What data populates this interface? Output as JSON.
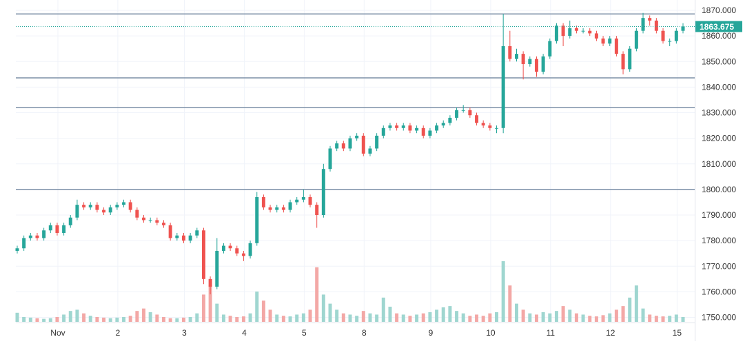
{
  "chart_data": {
    "type": "candlestick",
    "title": "",
    "ylim": [
      1745,
      1872
    ],
    "y_ticks": [
      "1870.000",
      "1860.000",
      "1850.000",
      "1840.000",
      "1830.000",
      "1820.000",
      "1810.000",
      "1800.000",
      "1790.000",
      "1780.000",
      "1770.000",
      "1760.000",
      "1750.000"
    ],
    "x_ticks": [
      {
        "label": "Nov",
        "index": 3
      },
      {
        "label": "2",
        "index": 12
      },
      {
        "label": "3",
        "index": 22
      },
      {
        "label": "4",
        "index": 31
      },
      {
        "label": "5",
        "index": 40
      },
      {
        "label": "8",
        "index": 49
      },
      {
        "label": "9",
        "index": 59
      },
      {
        "label": "10",
        "index": 68
      },
      {
        "label": "11",
        "index": 77
      },
      {
        "label": "12",
        "index": 86
      },
      {
        "label": "15",
        "index": 96
      }
    ],
    "grid": true,
    "last_price": {
      "value": 1863.675,
      "label": "1863.675"
    },
    "horizontal_levels": [
      1868.6,
      1843.6,
      1832,
      1800
    ],
    "colors": {
      "up": "#26a69a",
      "down": "#ef5350",
      "up_volume": "#9fd6d0",
      "down_volume": "#f3a8a6",
      "level": "#7b8fa6",
      "grid": "#f0f3fa",
      "label_bg": "#26a69a"
    },
    "candles_ohlc": [
      [
        1776,
        1778,
        1775,
        1777
      ],
      [
        1777,
        1782,
        1776,
        1781
      ],
      [
        1781,
        1783,
        1780,
        1782
      ],
      [
        1782,
        1783,
        1780,
        1781
      ],
      [
        1781,
        1785,
        1780,
        1784
      ],
      [
        1784,
        1787,
        1783,
        1786
      ],
      [
        1786,
        1787,
        1782,
        1783
      ],
      [
        1783,
        1787,
        1782,
        1786
      ],
      [
        1786,
        1790,
        1785,
        1789
      ],
      [
        1789,
        1796,
        1788,
        1794
      ],
      [
        1794,
        1795,
        1792,
        1793
      ],
      [
        1793,
        1795,
        1792,
        1794
      ],
      [
        1794,
        1795,
        1791,
        1792
      ],
      [
        1792,
        1793,
        1790,
        1791
      ],
      [
        1791,
        1794,
        1790,
        1793
      ],
      [
        1793,
        1795,
        1792,
        1794
      ],
      [
        1794,
        1796,
        1793,
        1795
      ],
      [
        1795,
        1796,
        1791,
        1792
      ],
      [
        1792,
        1793,
        1788,
        1789
      ],
      [
        1789,
        1790,
        1787,
        1788
      ],
      [
        1788,
        1789,
        1787,
        1788
      ],
      [
        1788,
        1789,
        1786,
        1787
      ],
      [
        1787,
        1788,
        1785,
        1786
      ],
      [
        1786,
        1787,
        1780,
        1781
      ],
      [
        1781,
        1783,
        1780,
        1782
      ],
      [
        1782,
        1783,
        1779,
        1780
      ],
      [
        1780,
        1783,
        1779,
        1782
      ],
      [
        1782,
        1785,
        1781,
        1784
      ],
      [
        1784,
        1785,
        1763,
        1765
      ],
      [
        1765,
        1766,
        1759,
        1762
      ],
      [
        1762,
        1781,
        1761,
        1776
      ],
      [
        1776,
        1779,
        1775,
        1778
      ],
      [
        1778,
        1779,
        1776,
        1777
      ],
      [
        1777,
        1778,
        1774,
        1775
      ],
      [
        1775,
        1776,
        1772,
        1774
      ],
      [
        1774,
        1780,
        1773,
        1779
      ],
      [
        1779,
        1799,
        1778,
        1797
      ],
      [
        1797,
        1798,
        1792,
        1793
      ],
      [
        1793,
        1794,
        1791,
        1792
      ],
      [
        1792,
        1794,
        1791,
        1793
      ],
      [
        1793,
        1794,
        1791,
        1792
      ],
      [
        1792,
        1796,
        1791,
        1795
      ],
      [
        1795,
        1797,
        1794,
        1796
      ],
      [
        1796,
        1800,
        1795,
        1797
      ],
      [
        1797,
        1798,
        1793,
        1794
      ],
      [
        1794,
        1795,
        1785,
        1790
      ],
      [
        1790,
        1810,
        1789,
        1808
      ],
      [
        1808,
        1817,
        1807,
        1816
      ],
      [
        1816,
        1819,
        1815,
        1818
      ],
      [
        1818,
        1819,
        1815,
        1816
      ],
      [
        1816,
        1821,
        1815,
        1820
      ],
      [
        1820,
        1822,
        1819,
        1821
      ],
      [
        1821,
        1822,
        1813,
        1814
      ],
      [
        1814,
        1817,
        1813,
        1816
      ],
      [
        1816,
        1822,
        1815,
        1821
      ],
      [
        1821,
        1825,
        1820,
        1824
      ],
      [
        1824,
        1826,
        1823,
        1825
      ],
      [
        1825,
        1826,
        1823,
        1824
      ],
      [
        1824,
        1826,
        1823,
        1825
      ],
      [
        1825,
        1826,
        1822,
        1823
      ],
      [
        1823,
        1825,
        1822,
        1824
      ],
      [
        1824,
        1825,
        1820,
        1821
      ],
      [
        1821,
        1824,
        1820,
        1823
      ],
      [
        1823,
        1826,
        1822,
        1825
      ],
      [
        1825,
        1827,
        1824,
        1826
      ],
      [
        1826,
        1829,
        1825,
        1828
      ],
      [
        1828,
        1832,
        1827,
        1831
      ],
      [
        1831,
        1833,
        1830,
        1831
      ],
      [
        1831,
        1832,
        1828,
        1829
      ],
      [
        1829,
        1830,
        1825,
        1826
      ],
      [
        1826,
        1827,
        1824,
        1825
      ],
      [
        1825,
        1826,
        1823,
        1824
      ],
      [
        1824,
        1825,
        1822,
        1824
      ],
      [
        1824,
        1868.6,
        1822,
        1856
      ],
      [
        1856,
        1862,
        1850,
        1851
      ],
      [
        1851,
        1855,
        1850,
        1853
      ],
      [
        1853,
        1854,
        1843,
        1849
      ],
      [
        1849,
        1852,
        1848,
        1851
      ],
      [
        1851,
        1852,
        1844,
        1846
      ],
      [
        1846,
        1853,
        1845,
        1852
      ],
      [
        1852,
        1859,
        1851,
        1858
      ],
      [
        1858,
        1865,
        1857,
        1864
      ],
      [
        1864,
        1865,
        1856,
        1860
      ],
      [
        1860,
        1866,
        1859,
        1863
      ],
      [
        1863,
        1864,
        1861,
        1862
      ],
      [
        1862,
        1863,
        1861,
        1862
      ],
      [
        1862,
        1863,
        1860,
        1861
      ],
      [
        1861,
        1862,
        1858,
        1859
      ],
      [
        1859,
        1860,
        1856,
        1857
      ],
      [
        1857,
        1860,
        1856,
        1859
      ],
      [
        1859,
        1860,
        1852,
        1853
      ],
      [
        1853,
        1854,
        1845,
        1847
      ],
      [
        1847,
        1856,
        1846,
        1855
      ],
      [
        1855,
        1863,
        1854,
        1862
      ],
      [
        1862,
        1869,
        1861,
        1867
      ],
      [
        1867,
        1868,
        1864,
        1866
      ],
      [
        1866,
        1867,
        1861,
        1862
      ],
      [
        1862,
        1863,
        1857,
        1858
      ],
      [
        1858,
        1859,
        1856,
        1858
      ],
      [
        1858,
        1863,
        1857,
        1862
      ],
      [
        1862,
        1865,
        1861,
        1863.675
      ]
    ],
    "volume": [
      15,
      8,
      7,
      6,
      5,
      6,
      8,
      12,
      18,
      20,
      14,
      10,
      8,
      7,
      6,
      7,
      8,
      10,
      18,
      22,
      16,
      12,
      8,
      6,
      6,
      7,
      8,
      14,
      45,
      60,
      30,
      12,
      10,
      8,
      9,
      14,
      50,
      35,
      20,
      12,
      10,
      9,
      12,
      14,
      20,
      90,
      45,
      30,
      20,
      14,
      12,
      10,
      18,
      14,
      12,
      40,
      25,
      14,
      12,
      10,
      12,
      14,
      16,
      20,
      24,
      26,
      18,
      14,
      10,
      12,
      10,
      14,
      16,
      100,
      60,
      30,
      20,
      14,
      12,
      16,
      14,
      18,
      26,
      20,
      14,
      12,
      10,
      9,
      11,
      14,
      20,
      26,
      40,
      60,
      22,
      12,
      10,
      9,
      10,
      12,
      8
    ]
  }
}
